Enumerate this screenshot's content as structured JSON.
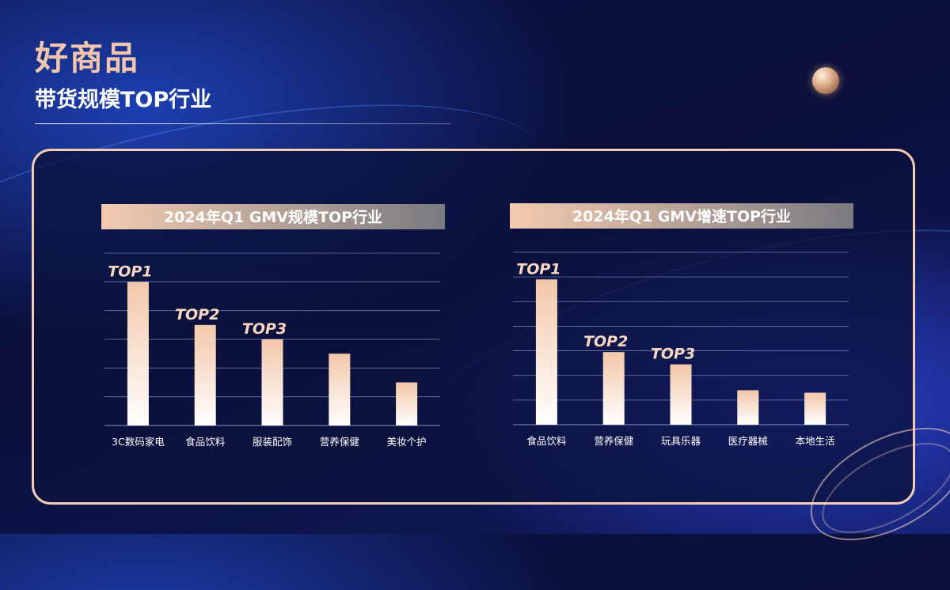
{
  "header": {
    "title": "好商品",
    "subtitle": "带货规模TOP行业"
  },
  "colors": {
    "accent": "#f1c6ab",
    "bar_top": "#f2c7a9",
    "bar_bottom": "#ffffff",
    "background": "#0b0f3a",
    "grid": "#8a94c8"
  },
  "chart_data": [
    {
      "type": "bar",
      "title": "2024年Q1 GMV规模TOP行业",
      "categories": [
        "3C数码家电",
        "食品饮料",
        "服装配饰",
        "营养保健",
        "美妆个护"
      ],
      "values": [
        5.0,
        3.5,
        3.0,
        2.5,
        1.5
      ],
      "rank_labels": [
        "TOP1",
        "TOP2",
        "TOP3",
        "",
        ""
      ],
      "ylim": [
        0,
        6
      ],
      "grid": true,
      "legend": "none"
    },
    {
      "type": "bar",
      "title": "2024年Q1 GMV增速TOP行业",
      "categories": [
        "食品饮料",
        "营养保健",
        "玩具乐器",
        "医疗器械",
        "本地生活"
      ],
      "values": [
        5.9,
        2.95,
        2.45,
        1.4,
        1.3
      ],
      "rank_labels": [
        "TOP1",
        "TOP2",
        "TOP3",
        "",
        ""
      ],
      "ylim": [
        0,
        7
      ],
      "grid": true,
      "legend": "none"
    }
  ]
}
